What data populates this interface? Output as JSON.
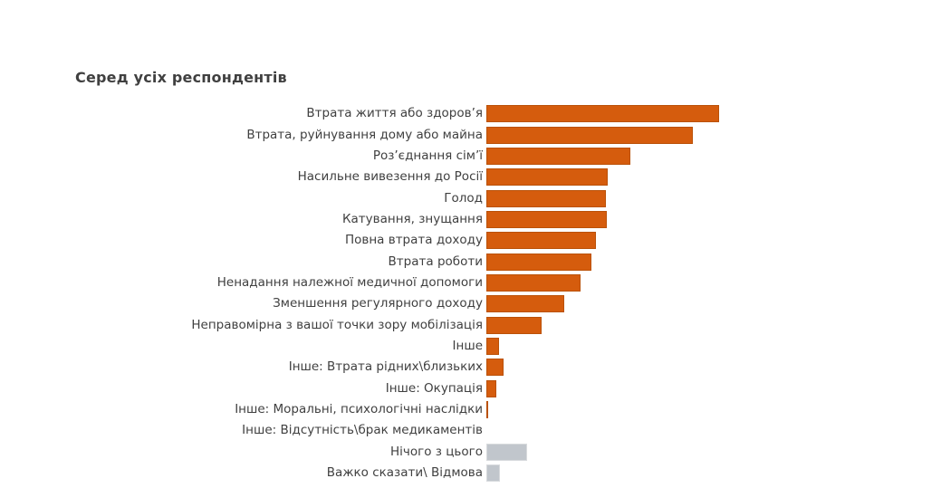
{
  "chart_data": {
    "type": "bar",
    "orientation": "horizontal",
    "title": "Серед усіх респондентів",
    "title_color": "#404040",
    "label_color": "#404040",
    "background": "#FFFFFF",
    "axis_shown": false,
    "gridlines": false,
    "data_labels_shown": false,
    "legend": "none",
    "value_unit": "relative bar length in px (chart displays no numeric axis or data labels)",
    "categories": [
      "Втрата життя або здоров’я",
      "Втрата, руйнування дому або майна",
      "Роз’єднання сім’ї",
      "Насильне вивезення до Росії",
      "Голод",
      "Катування, знущання",
      "Повна втрата доходу",
      "Втрата роботи",
      "Ненадання належної медичної допомоги",
      "Зменшення регулярного доходу",
      "Неправомірна з вашої точки зору мобілізація",
      "Інше",
      "Інше: Втрата рідних\\близьких",
      "Інше: Окупація",
      "Інше: Моральні, психологічні наслідки",
      "Інше: Відсутність\\брак медикаментів",
      "Нічого з цього",
      "Важко сказати\\ Відмова"
    ],
    "values": [
      257,
      228,
      159,
      134,
      132,
      133,
      121,
      116,
      104,
      86,
      61,
      14,
      19,
      11,
      2,
      0,
      45,
      15
    ],
    "bar_styles": [
      "primary",
      "primary",
      "primary",
      "primary",
      "primary",
      "primary",
      "primary",
      "primary",
      "primary",
      "primary",
      "primary",
      "primary",
      "primary",
      "primary",
      "primary",
      "primary",
      "muted",
      "muted"
    ],
    "palette": {
      "primary_fill": "#D55C0D",
      "primary_border": "#BA5108",
      "muted_fill": "#C1C6CC",
      "muted_border": "#D8DADD"
    }
  }
}
